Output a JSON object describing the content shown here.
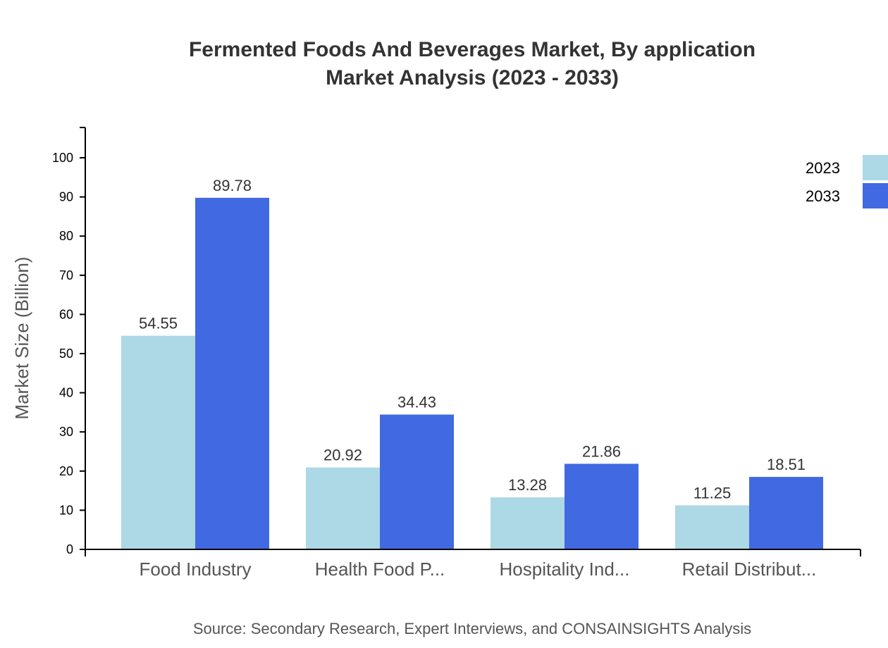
{
  "chart_data": {
    "type": "bar",
    "title": [
      "Fermented Foods And Beverages Market, By application",
      "Market Analysis (2023 - 2033)"
    ],
    "ylabel": "Market Size (Billion)",
    "xlabel": "",
    "ylim": [
      0,
      100
    ],
    "yticks": [
      0,
      10,
      20,
      30,
      40,
      50,
      60,
      70,
      80,
      90,
      100
    ],
    "categories": [
      "Food Industry",
      "Health Food P...",
      "Hospitality Ind...",
      "Retail Distribut..."
    ],
    "series": [
      {
        "name": "2023",
        "color": "#add8e6",
        "values": [
          54.55,
          20.92,
          13.28,
          11.25
        ]
      },
      {
        "name": "2033",
        "color": "#4169e1",
        "values": [
          89.78,
          34.43,
          21.86,
          18.51
        ]
      }
    ],
    "grid": false,
    "legend": "top-right",
    "source": "Source: Secondary Research, Expert Interviews, and CONSAINSIGHTS Analysis"
  }
}
